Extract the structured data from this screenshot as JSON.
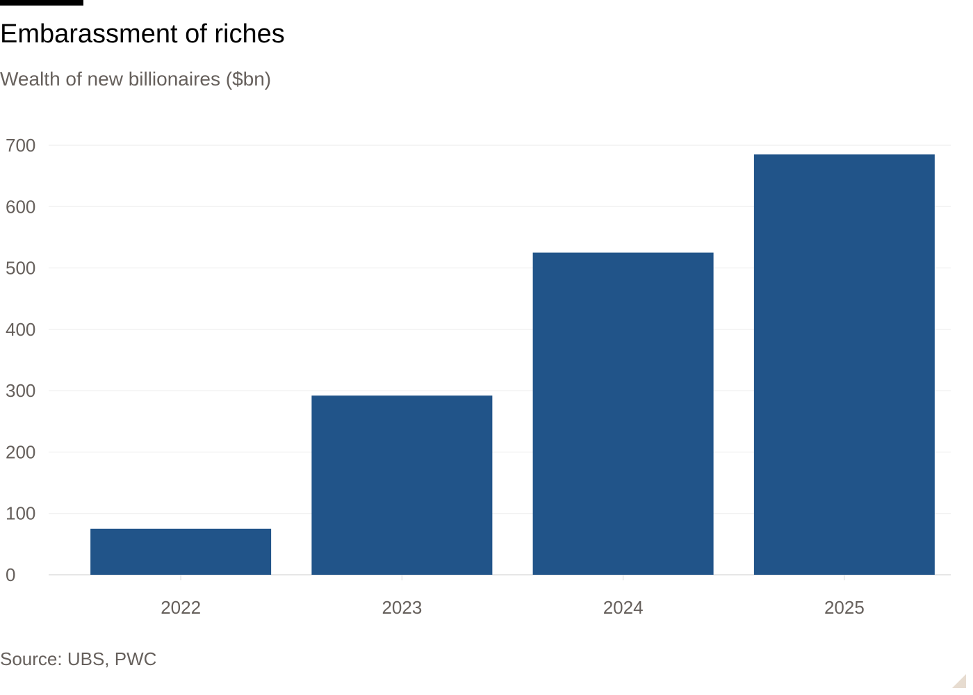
{
  "header": {
    "title": "Embarassment of riches",
    "subtitle": "Wealth of new billionaires ($bn)"
  },
  "footer": {
    "source": "Source: UBS, PWC"
  },
  "colors": {
    "bar": "#215489",
    "grid": "#efefef",
    "axis_text": "#66605c",
    "baseline": "#e6e6e6"
  },
  "chart_data": {
    "type": "bar",
    "categories": [
      "2022",
      "2023",
      "2024",
      "2025"
    ],
    "values": [
      75,
      292,
      525,
      685
    ],
    "xlabel": "",
    "ylabel": "",
    "ylim": [
      0,
      700
    ],
    "yticks": [
      0,
      100,
      200,
      300,
      400,
      500,
      600,
      700
    ],
    "grid": true,
    "legend": "none"
  }
}
